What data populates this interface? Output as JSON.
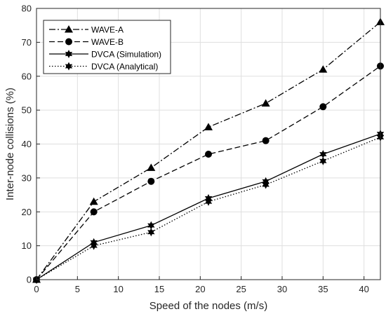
{
  "chart_data": {
    "type": "line",
    "xlabel": "Speed of the nodes (m/s)",
    "ylabel": "Inter-node collisions (%)",
    "xlim": [
      0,
      42
    ],
    "ylim": [
      0,
      80
    ],
    "xticks": [
      0,
      5,
      10,
      15,
      20,
      25,
      30,
      35,
      40
    ],
    "yticks": [
      0,
      10,
      20,
      30,
      40,
      50,
      60,
      70,
      80
    ],
    "x": [
      0,
      7,
      14,
      21,
      28,
      35,
      42
    ],
    "grid": true,
    "legend_position": "top-left",
    "series": [
      {
        "name": "WAVE-A",
        "values": [
          0,
          23,
          33,
          45,
          52,
          62,
          76
        ],
        "line_style": "dash-dot",
        "marker": "triangle",
        "color": "#000000"
      },
      {
        "name": "WAVE-B",
        "values": [
          0,
          20,
          29,
          37,
          41,
          51,
          63
        ],
        "line_style": "dashed",
        "marker": "circle",
        "color": "#000000"
      },
      {
        "name": "DVCA (Simulation)",
        "values": [
          0,
          11,
          16,
          24,
          29,
          37,
          43
        ],
        "line_style": "solid",
        "marker": "hexagram",
        "color": "#000000"
      },
      {
        "name": "DVCA (Analytical)",
        "values": [
          0,
          10,
          14,
          23,
          28,
          35,
          42
        ],
        "line_style": "dotted",
        "marker": "hexagram",
        "color": "#000000"
      }
    ]
  }
}
